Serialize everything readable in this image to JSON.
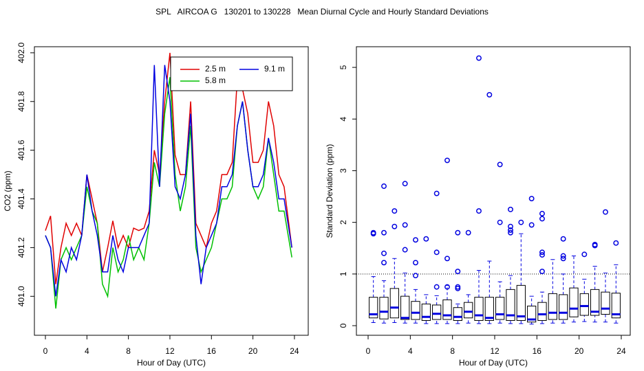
{
  "title": "SPL   AIRCOA G   130201 to 130228   Mean Diurnal Cycle and Hourly Standard Deviations",
  "chart_data": [
    {
      "type": "line",
      "xlabel": "Hour of Day (UTC)",
      "ylabel": "CO2 (ppm)",
      "xlim": [
        -1.06,
        25.33
      ],
      "ylim": [
        400.84,
        402.025
      ],
      "xticks": [
        0,
        4,
        8,
        12,
        16,
        20,
        24
      ],
      "yticks": [
        {
          "value": 401,
          "label": "401.0"
        },
        401.2,
        401.4,
        401.6,
        401.8,
        {
          "value": 402,
          "label": "402.0"
        }
      ],
      "legend": "top-right",
      "x": [
        0,
        0.5,
        1,
        1.5,
        2,
        2.5,
        3,
        3.5,
        4,
        4.5,
        5,
        5.5,
        6,
        6.5,
        7,
        7.5,
        8,
        8.5,
        9,
        9.5,
        10,
        10.5,
        11,
        11.5,
        12,
        12.5,
        13,
        13.5,
        14,
        14.5,
        15,
        15.5,
        16,
        16.5,
        17,
        17.5,
        18,
        18.5,
        19,
        19.5,
        20,
        20.5,
        21,
        21.5,
        22,
        22.5,
        23,
        23.75
      ],
      "series": [
        {
          "name": "2.5 m",
          "color": "#e00000",
          "values": [
            401.27,
            401.33,
            401.05,
            401.2,
            401.3,
            401.25,
            401.3,
            401.25,
            401.5,
            401.4,
            401.3,
            401.1,
            401.2,
            401.31,
            401.2,
            401.25,
            401.2,
            401.28,
            401.27,
            401.28,
            401.35,
            401.6,
            401.5,
            401.8,
            402.0,
            401.58,
            401.5,
            401.5,
            401.8,
            401.3,
            401.25,
            401.2,
            401.3,
            401.35,
            401.5,
            401.5,
            401.55,
            401.9,
            401.85,
            401.75,
            401.55,
            401.55,
            401.6,
            401.8,
            401.7,
            401.5,
            401.45,
            401.2
          ]
        },
        {
          "name": "5.8 m",
          "color": "#00c000",
          "values": [
            401.25,
            401.2,
            400.95,
            401.15,
            401.2,
            401.15,
            401.2,
            401.25,
            401.45,
            401.35,
            401.3,
            401.05,
            401.0,
            401.2,
            401.1,
            401.15,
            401.25,
            401.15,
            401.2,
            401.15,
            401.3,
            401.55,
            401.45,
            401.75,
            401.9,
            401.5,
            401.35,
            401.45,
            401.7,
            401.2,
            401.1,
            401.15,
            401.2,
            401.3,
            401.4,
            401.4,
            401.45,
            401.7,
            401.8,
            401.6,
            401.45,
            401.4,
            401.45,
            401.65,
            401.5,
            401.35,
            401.35,
            401.16
          ]
        },
        {
          "name": "9.1 m",
          "color": "#0000e0",
          "values": [
            401.25,
            401.2,
            401.0,
            401.15,
            401.1,
            401.2,
            401.15,
            401.25,
            401.5,
            401.35,
            401.25,
            401.1,
            401.1,
            401.25,
            401.15,
            401.1,
            401.2,
            401.2,
            401.2,
            401.25,
            401.3,
            401.95,
            401.45,
            401.95,
            401.8,
            401.45,
            401.4,
            401.5,
            401.75,
            401.25,
            401.05,
            401.2,
            401.25,
            401.3,
            401.45,
            401.45,
            401.5,
            401.7,
            401.8,
            401.6,
            401.45,
            401.45,
            401.5,
            401.65,
            401.55,
            401.4,
            401.4,
            401.2
          ]
        }
      ]
    },
    {
      "type": "box",
      "xlabel": "Hour of Day (UTC)",
      "ylabel": "Standard Deviation (ppm)",
      "xlim": [
        -1.11,
        24.85
      ],
      "ylim": [
        -0.186,
        5.4
      ],
      "xticks": [
        0,
        4,
        8,
        12,
        16,
        20,
        24
      ],
      "yticks": [
        0,
        1,
        2,
        3,
        4,
        5
      ],
      "hline": 1,
      "color": "#0000e0",
      "boxes": [
        {
          "x": 0.5,
          "whislo": 0.06,
          "q1": 0.15,
          "med": 0.22,
          "q3": 0.55,
          "whishi": 0.95,
          "fliers": [
            1.8,
            1.78
          ]
        },
        {
          "x": 1.5,
          "whislo": 0.05,
          "q1": 0.13,
          "med": 0.27,
          "q3": 0.55,
          "whishi": 0.87,
          "fliers": [
            2.7,
            1.4,
            1.22,
            1.8
          ]
        },
        {
          "x": 2.5,
          "whislo": 0.06,
          "q1": 0.15,
          "med": 0.35,
          "q3": 0.72,
          "whishi": 1.3,
          "fliers": [
            2.22,
            1.92
          ]
        },
        {
          "x": 3.5,
          "whislo": 0.05,
          "q1": 0.12,
          "med": 0.15,
          "q3": 0.57,
          "whishi": 1.02,
          "fliers": [
            2.75,
            1.95,
            1.47
          ]
        },
        {
          "x": 4.5,
          "whislo": 0.05,
          "q1": 0.12,
          "med": 0.25,
          "q3": 0.47,
          "whishi": 0.7,
          "fliers": [
            1.22,
            0.97,
            1.66
          ]
        },
        {
          "x": 5.5,
          "whislo": 0.04,
          "q1": 0.1,
          "med": 0.17,
          "q3": 0.42,
          "whishi": 0.6,
          "fliers": [
            1.68
          ]
        },
        {
          "x": 6.5,
          "whislo": 0.04,
          "q1": 0.12,
          "med": 0.23,
          "q3": 0.4,
          "whishi": 0.58,
          "fliers": [
            2.56,
            1.42,
            0.75
          ]
        },
        {
          "x": 7.5,
          "whislo": 0.04,
          "q1": 0.12,
          "med": 0.2,
          "q3": 0.5,
          "whishi": 0.78,
          "fliers": [
            3.2,
            1.3,
            0.75
          ]
        },
        {
          "x": 8.5,
          "whislo": 0.04,
          "q1": 0.1,
          "med": 0.17,
          "q3": 0.35,
          "whishi": 0.42,
          "fliers": [
            1.8,
            1.05,
            0.75,
            0.72
          ]
        },
        {
          "x": 9.5,
          "whislo": 0.05,
          "q1": 0.15,
          "med": 0.27,
          "q3": 0.45,
          "whishi": 0.6,
          "fliers": [
            1.8
          ]
        },
        {
          "x": 10.5,
          "whislo": 0.04,
          "q1": 0.1,
          "med": 0.2,
          "q3": 0.55,
          "whishi": 1.07,
          "fliers": [
            5.18,
            2.22
          ]
        },
        {
          "x": 11.5,
          "whislo": 0.04,
          "q1": 0.1,
          "med": 0.15,
          "q3": 0.55,
          "whishi": 1.25,
          "fliers": [
            4.47
          ]
        },
        {
          "x": 12.5,
          "whislo": 0.05,
          "q1": 0.12,
          "med": 0.22,
          "q3": 0.55,
          "whishi": 0.85,
          "fliers": [
            3.12,
            2.0
          ]
        },
        {
          "x": 13.5,
          "whislo": 0.04,
          "q1": 0.1,
          "med": 0.2,
          "q3": 0.7,
          "whishi": 0.97,
          "fliers": [
            2.25,
            1.92,
            1.85,
            1.8
          ]
        },
        {
          "x": 14.5,
          "whislo": 0.04,
          "q1": 0.1,
          "med": 0.18,
          "q3": 0.78,
          "whishi": 1.78,
          "fliers": [
            2.0
          ]
        },
        {
          "x": 15.5,
          "whislo": 0.03,
          "q1": 0.07,
          "med": 0.12,
          "q3": 0.38,
          "whishi": 0.57,
          "fliers": [
            2.46,
            1.95
          ]
        },
        {
          "x": 16.5,
          "whislo": 0.04,
          "q1": 0.1,
          "med": 0.22,
          "q3": 0.45,
          "whishi": 0.65,
          "fliers": [
            2.17,
            2.07,
            1.42,
            1.37,
            1.05
          ]
        },
        {
          "x": 17.5,
          "whislo": 0.05,
          "q1": 0.12,
          "med": 0.25,
          "q3": 0.62,
          "whishi": 1.28,
          "fliers": []
        },
        {
          "x": 18.5,
          "whislo": 0.05,
          "q1": 0.12,
          "med": 0.25,
          "q3": 0.6,
          "whishi": 1.0,
          "fliers": [
            1.68,
            1.35,
            1.3
          ]
        },
        {
          "x": 19.5,
          "whislo": 0.07,
          "q1": 0.17,
          "med": 0.33,
          "q3": 0.73,
          "whishi": 1.35,
          "fliers": []
        },
        {
          "x": 20.5,
          "whislo": 0.08,
          "q1": 0.2,
          "med": 0.38,
          "q3": 0.62,
          "whishi": 0.9,
          "fliers": [
            1.38
          ]
        },
        {
          "x": 21.5,
          "whislo": 0.07,
          "q1": 0.2,
          "med": 0.27,
          "q3": 0.7,
          "whishi": 1.15,
          "fliers": [
            1.57,
            1.55
          ]
        },
        {
          "x": 22.5,
          "whislo": 0.07,
          "q1": 0.22,
          "med": 0.33,
          "q3": 0.65,
          "whishi": 1.02,
          "fliers": [
            2.2
          ]
        },
        {
          "x": 23.5,
          "whislo": 0.05,
          "q1": 0.15,
          "med": 0.22,
          "q3": 0.63,
          "whishi": 1.18,
          "fliers": [
            1.6
          ]
        }
      ]
    }
  ]
}
